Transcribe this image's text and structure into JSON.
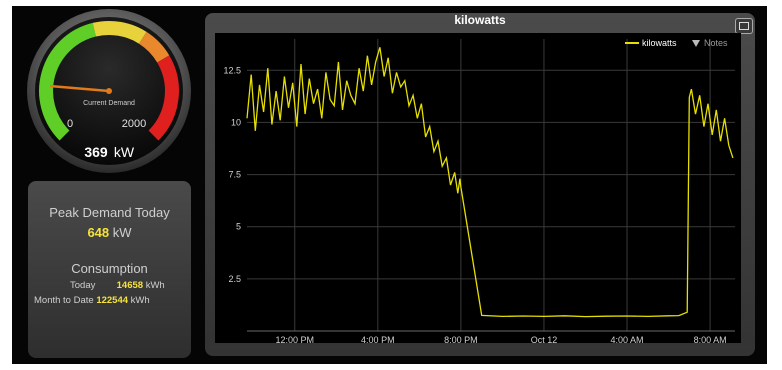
{
  "gauge": {
    "label": "Current Demand",
    "min_label": "0",
    "max_label": "2000",
    "value": "369",
    "unit": "kW",
    "value_numeric": 369,
    "max_numeric": 2000
  },
  "peak": {
    "title": "Peak Demand Today",
    "value": "648",
    "unit": "kW"
  },
  "consumption": {
    "title": "Consumption",
    "today_label": "Today",
    "today_value": "14658",
    "today_unit": "kWh",
    "month_label": "Month to Date",
    "month_value": "122544",
    "month_unit": "kWh"
  },
  "chart_data": {
    "type": "line",
    "title": "kilowatts",
    "legend": [
      "kilowatts",
      "Notes"
    ],
    "ylim": [
      0,
      14
    ],
    "yticks": [
      "2.5",
      "5",
      "7.5",
      "10",
      "12.5"
    ],
    "ytick_values": [
      2.5,
      5,
      7.5,
      10,
      12.5
    ],
    "xticks": [
      "12:00 PM",
      "4:00 PM",
      "8:00 PM",
      "Oct 12",
      "4:00 AM",
      "8:00 AM"
    ],
    "xtick_hours": [
      12,
      16,
      20,
      24,
      28,
      32
    ],
    "xlim_hours": [
      9.7,
      33.2
    ],
    "series": [
      {
        "name": "kilowatts",
        "color": "#e6e000",
        "x": [
          9.7,
          9.9,
          10.1,
          10.3,
          10.5,
          10.7,
          10.9,
          11.1,
          11.3,
          11.5,
          11.7,
          11.9,
          12.1,
          12.3,
          12.5,
          12.7,
          12.9,
          13.1,
          13.3,
          13.5,
          13.7,
          13.9,
          14.1,
          14.3,
          14.5,
          14.7,
          14.9,
          15.1,
          15.3,
          15.5,
          15.7,
          15.9,
          16.1,
          16.3,
          16.5,
          16.7,
          16.9,
          17.1,
          17.3,
          17.5,
          17.7,
          17.9,
          18.1,
          18.3,
          18.5,
          18.7,
          18.9,
          19.1,
          19.3,
          19.5,
          19.7,
          19.85,
          19.95,
          20.0,
          21,
          22,
          23,
          24,
          25,
          26,
          27,
          28,
          29,
          30,
          30.5,
          30.9,
          31.0,
          31.1,
          31.3,
          31.5,
          31.7,
          31.9,
          32.1,
          32.3,
          32.5,
          32.7,
          32.9,
          33.1
        ],
        "values": [
          10.2,
          12.3,
          9.6,
          11.8,
          10.5,
          12.6,
          9.9,
          11.5,
          10.1,
          12.2,
          10.7,
          11.9,
          9.8,
          12.8,
          10.4,
          12.1,
          10.9,
          11.6,
          10.2,
          12.4,
          11.1,
          10.8,
          12.9,
          10.6,
          12.0,
          11.3,
          10.9,
          12.6,
          11.5,
          13.2,
          11.8,
          12.9,
          13.6,
          12.2,
          13.1,
          11.4,
          12.4,
          11.7,
          12.0,
          10.8,
          11.3,
          10.2,
          10.9,
          9.3,
          9.8,
          8.6,
          9.1,
          7.9,
          8.3,
          7.0,
          7.6,
          6.6,
          7.3,
          6.9,
          0.75,
          0.7,
          0.72,
          0.7,
          0.73,
          0.69,
          0.71,
          0.72,
          0.7,
          0.73,
          0.74,
          0.9,
          11.2,
          11.6,
          10.4,
          11.3,
          9.8,
          10.9,
          9.4,
          10.6,
          9.1,
          10.2,
          8.9,
          8.3
        ]
      }
    ]
  }
}
